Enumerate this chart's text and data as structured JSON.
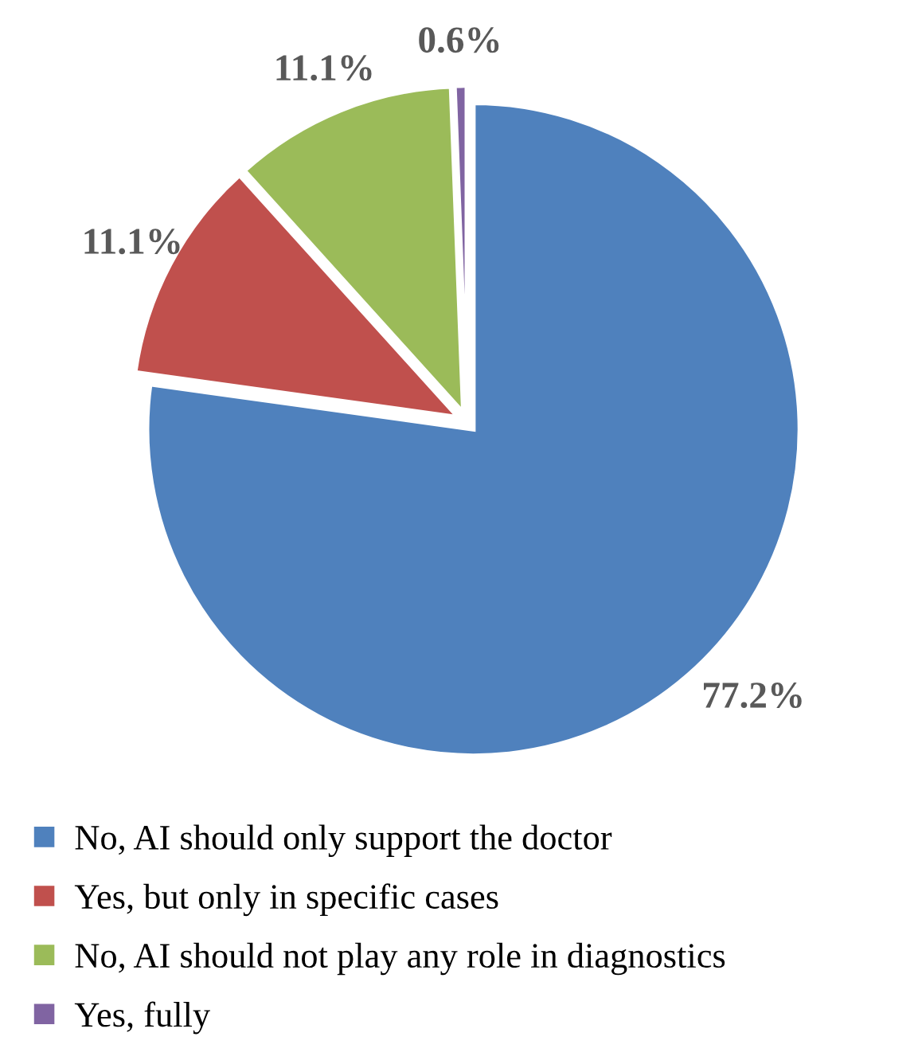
{
  "chart_data": {
    "type": "pie",
    "categories": [
      "No, AI should only support the doctor",
      "Yes, but only in specific cases",
      "No, AI should not play any role in diagnostics",
      "Yes, fully"
    ],
    "values": [
      77.2,
      11.1,
      11.1,
      0.6
    ],
    "value_labels": [
      "77.2%",
      "11.1%",
      "11.1%",
      "0.6%"
    ],
    "colors": [
      "#4f81bd",
      "#c0504d",
      "#9bbb59",
      "#8064a2"
    ],
    "legend": "bottom"
  }
}
